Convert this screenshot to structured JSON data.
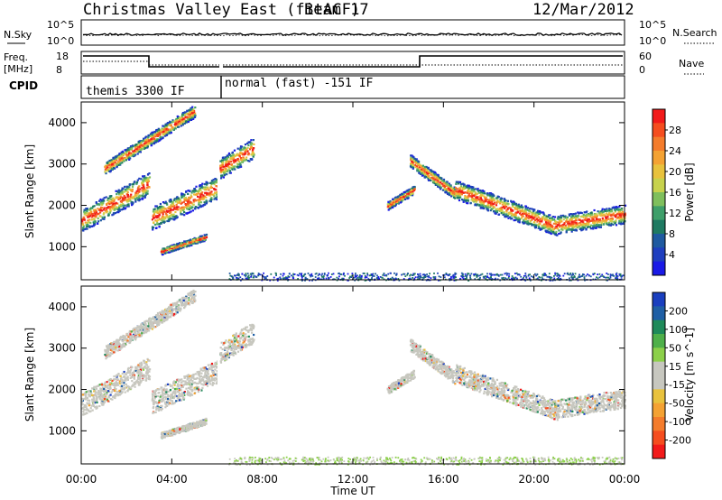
{
  "header": {
    "station": "Christmas Valley East (fitACF)",
    "beam": "Beam 17",
    "date": "12/Mar/2012"
  },
  "top_strip": {
    "nsky_label": "N.Sky",
    "nsky_ticks": [
      "10^5",
      "10^0"
    ],
    "nsearch_label": "N.Search",
    "freq_label": "Freq.",
    "freq_unit": "[MHz]",
    "freq_ticks": [
      "18",
      "8"
    ],
    "nave_label": "Nave",
    "nave_ticks": [
      "60",
      "0"
    ],
    "cpid_label": "CPID",
    "modes": [
      "themis 3300 IF",
      "normal (fast) -151 IF"
    ]
  },
  "chart_data": [
    {
      "type": "heatmap",
      "name": "power",
      "ylabel": "Slant Range [km]",
      "xlabel": "Time UT",
      "x_ticks": [
        "00:00",
        "04:00",
        "08:00",
        "12:00",
        "16:00",
        "20:00",
        "00:00"
      ],
      "y_ticks": [
        1000,
        2000,
        3000,
        4000
      ],
      "ylim": [
        200,
        4500
      ],
      "colorbar_label": "Power [dB]",
      "colorbar_ticks": [
        "28",
        "24",
        "20",
        "16",
        "12",
        "8",
        "4"
      ],
      "colors": [
        "#f21a1a",
        "#f54d1f",
        "#f47c2c",
        "#f4a233",
        "#e8c23d",
        "#c7d24d",
        "#7fbf5d",
        "#3f9f6a",
        "#1f7a62",
        "#1f5aa0",
        "#1f3fbf",
        "#1a1ae6"
      ]
    },
    {
      "type": "heatmap",
      "name": "velocity",
      "ylabel": "Slant Range [km]",
      "xlabel": "Time UT",
      "x_ticks": [
        "00:00",
        "04:00",
        "08:00",
        "12:00",
        "16:00",
        "20:00",
        "00:00"
      ],
      "y_ticks": [
        1000,
        2000,
        3000,
        4000
      ],
      "ylim": [
        200,
        4500
      ],
      "colorbar_label": "Velocity [m s^-1]",
      "colorbar_ticks": [
        "200",
        "100",
        "50",
        "15",
        "-15",
        "-50",
        "-100",
        "-200"
      ],
      "colors": [
        "#1a3fbf",
        "#1f5fa5",
        "#1f8a5a",
        "#4fb04a",
        "#8cd04a",
        "#c7c7bf",
        "#c7c7bf",
        "#e8c23d",
        "#f4a233",
        "#f47c2c",
        "#f54d1f",
        "#f21a1a"
      ]
    }
  ]
}
